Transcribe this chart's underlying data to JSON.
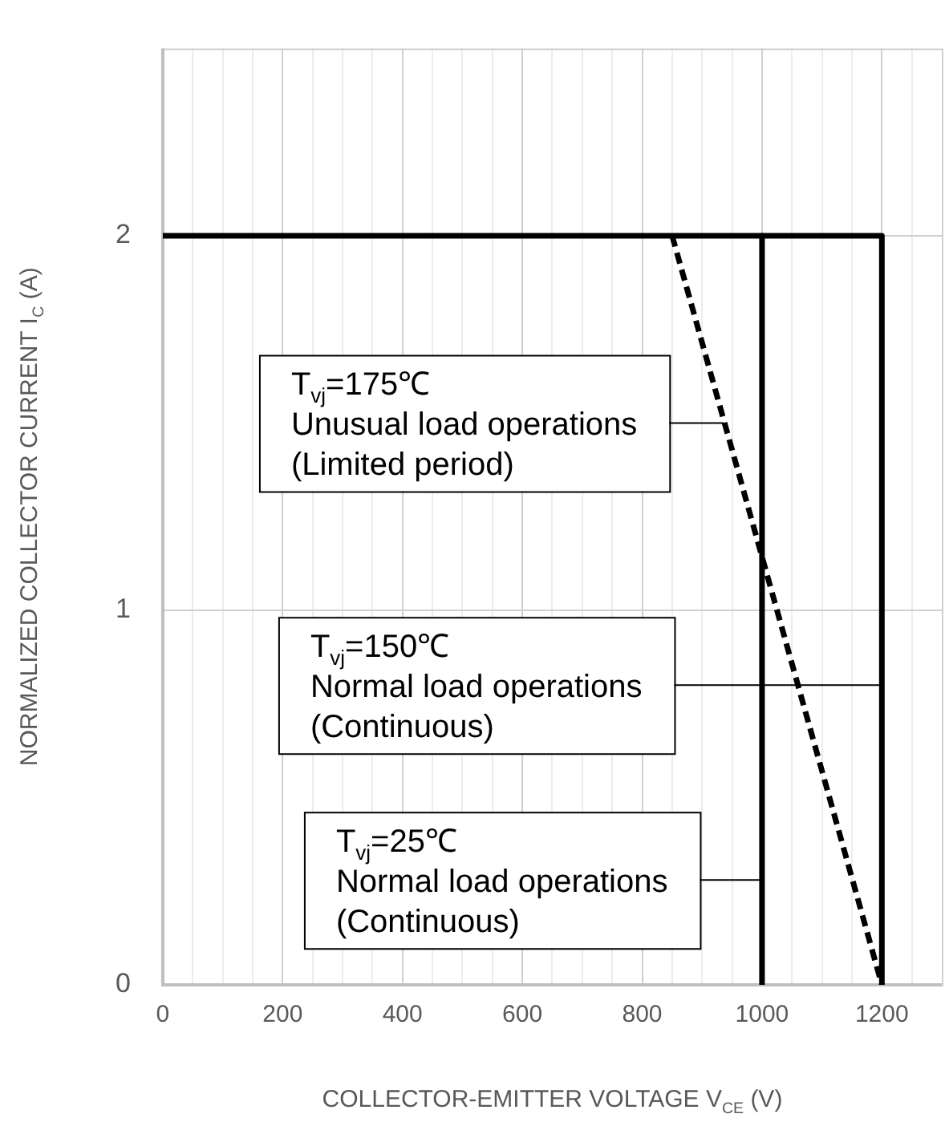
{
  "chart_data": {
    "type": "line",
    "xlabel": "COLLECTOR-EMITTER VOLTAGE V$_{CE}$ (V)",
    "ylabel": "NORMALIZED COLLECTOR CURRENT I$_{C}$ (A)",
    "xlim": [
      0,
      1300
    ],
    "xticks": [
      0,
      {
        "value": 50,
        "label": null
      },
      {
        "value": 100,
        "label": null
      },
      {
        "value": 150,
        "label": null
      },
      200,
      {
        "value": 250,
        "label": null
      },
      {
        "value": 300,
        "label": null
      },
      {
        "value": 350,
        "label": null
      },
      400,
      {
        "value": 450,
        "label": null
      },
      {
        "value": 500,
        "label": null
      },
      {
        "value": 550,
        "label": null
      },
      600,
      {
        "value": 650,
        "label": null
      },
      {
        "value": 700,
        "label": null
      },
      {
        "value": 750,
        "label": null
      },
      800,
      {
        "value": 850,
        "label": null
      },
      {
        "value": 900,
        "label": null
      },
      {
        "value": 950,
        "label": null
      },
      1000,
      {
        "value": 1050,
        "label": null
      },
      {
        "value": 1100,
        "label": null
      },
      {
        "value": 1150,
        "label": null
      },
      1200,
      {
        "value": 1250,
        "label": null
      }
    ],
    "ylim": [
      0,
      2.5
    ],
    "yticks": [
      0,
      1,
      2
    ],
    "grid": true,
    "legend": false,
    "marker": "none",
    "series": [
      {
        "color": "#000000",
        "x": [
          0,
          1200,
          1200
        ],
        "values": [
          2,
          2,
          0
        ],
        "line_style": "solid"
      },
      {
        "color": "#000000",
        "x": [
          1000,
          1000
        ],
        "values": [
          2,
          0
        ],
        "line_style": "solid"
      },
      {
        "color": "#000000",
        "x": [
          850,
          1200
        ],
        "values": [
          2,
          0
        ],
        "line_style": "dashed"
      }
    ],
    "annotations": [
      {
        "text": "T$_{vj}$=175℃\nUnusual load operations\n(Limited period)",
        "x": 936,
        "y": 1.5
      },
      {
        "text": "T$_{vj}$=150℃\nNormal load operations\n(Continuous)",
        "x": 1200,
        "y": 0.8
      },
      {
        "text": "T$_{vj}$=25℃\nNormal load operations\n(Continuous)",
        "x": 1000,
        "y": 0.28
      }
    ]
  }
}
